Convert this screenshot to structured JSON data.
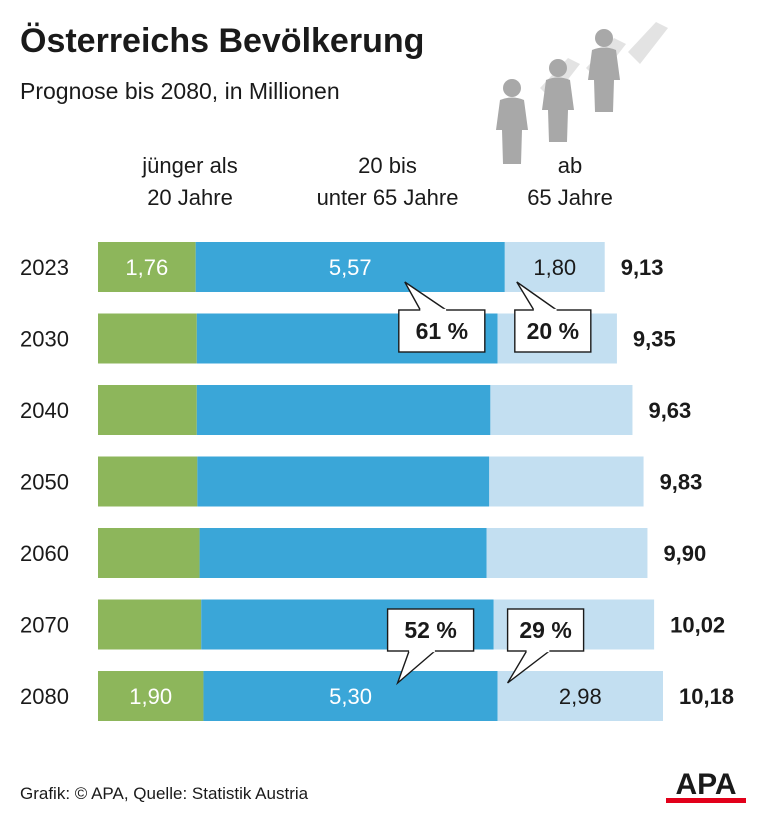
{
  "title": "Österreichs Bevölkerung",
  "subtitle": "Prognose bis 2080, in Millionen",
  "source": "Grafik: © APA, Quelle: Statistik Austria",
  "logo_text": "APA",
  "colors": {
    "young": "#8db65b",
    "middle": "#3aa6d8",
    "old": "#c3dff1",
    "text": "#1a1a1a",
    "brand_red": "#e2001a"
  },
  "chart_data": {
    "type": "bar",
    "orientation": "horizontal",
    "stacked": true,
    "title": "Österreichs Bevölkerung",
    "subtitle": "Prognose bis 2080, in Millionen",
    "categories": [
      "2023",
      "2030",
      "2040",
      "2050",
      "2060",
      "2070",
      "2080"
    ],
    "series": [
      {
        "key": "young",
        "name": "jünger als 20 Jahre",
        "name_lines": [
          "jünger als",
          "20 Jahre"
        ],
        "color": "#8db65b",
        "values": [
          1.76,
          1.78,
          1.78,
          1.79,
          1.83,
          1.86,
          1.9
        ],
        "labels": [
          "1,76",
          "",
          "",
          "",
          "",
          "",
          "1,90"
        ]
      },
      {
        "key": "middle",
        "name": "20 bis unter 65 Jahre",
        "name_lines": [
          "20 bis",
          "unter 65 Jahre"
        ],
        "color": "#3aa6d8",
        "values": [
          5.57,
          5.42,
          5.29,
          5.26,
          5.17,
          5.27,
          5.3
        ],
        "labels": [
          "5,57",
          "",
          "",
          "",
          "",
          "",
          "5,30"
        ]
      },
      {
        "key": "old",
        "name": "ab 65 Jahre",
        "name_lines": [
          "ab",
          "65 Jahre"
        ],
        "color": "#c3dff1",
        "values": [
          1.8,
          2.15,
          2.56,
          2.78,
          2.9,
          2.89,
          2.98
        ],
        "labels": [
          "1,80",
          "",
          "",
          "",
          "",
          "",
          "2,98"
        ]
      }
    ],
    "totals": [
      9.13,
      9.35,
      9.63,
      9.83,
      9.9,
      10.02,
      10.18
    ],
    "total_labels": [
      "9,13",
      "9,35",
      "9,63",
      "9,83",
      "9,90",
      "10,02",
      "10,18"
    ],
    "annotations": [
      {
        "text": "61 %",
        "year": "2023",
        "series": "middle"
      },
      {
        "text": "20 %",
        "year": "2023",
        "series": "old"
      },
      {
        "text": "52 %",
        "year": "2080",
        "series": "middle"
      },
      {
        "text": "29 %",
        "year": "2080",
        "series": "old"
      }
    ],
    "grid": false,
    "legend": "column headers above bars"
  }
}
